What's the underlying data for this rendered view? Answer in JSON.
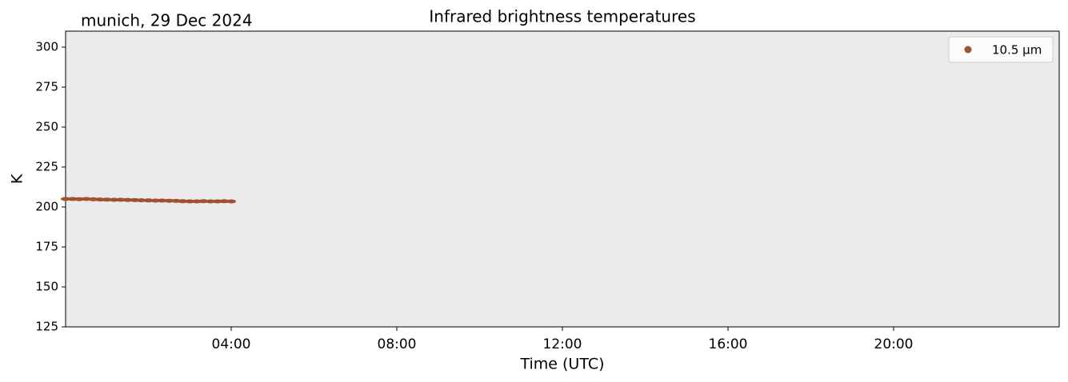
{
  "chart_data": {
    "type": "scatter",
    "title": "Infrared brightness temperatures",
    "subtitle": "munich, 29 Dec 2024",
    "xlabel": "Time (UTC)",
    "ylabel": "K",
    "xlim": [
      0,
      24
    ],
    "xticks": [
      {
        "value": 4,
        "label": "04:00"
      },
      {
        "value": 8,
        "label": "08:00"
      },
      {
        "value": 12,
        "label": "12:00"
      },
      {
        "value": 16,
        "label": "16:00"
      },
      {
        "value": 20,
        "label": "20:00"
      }
    ],
    "ylim": [
      125,
      310
    ],
    "yticks": [
      125,
      150,
      175,
      200,
      225,
      250,
      275,
      300
    ],
    "legend": "upper right",
    "series": [
      {
        "name": "10.5 µm",
        "color": "#a0522d",
        "x": [
          0,
          0.17,
          0.33,
          0.5,
          0.67,
          0.83,
          1,
          1.17,
          1.33,
          1.5,
          1.67,
          1.83,
          2,
          2.17,
          2.33,
          2.5,
          2.67,
          2.83,
          3,
          3.17,
          3.33,
          3.5,
          3.67,
          3.83,
          4
        ],
        "values": [
          205,
          205,
          204.9,
          205,
          204.8,
          204.7,
          204.6,
          204.5,
          204.5,
          204.4,
          204.3,
          204.2,
          204.1,
          204,
          204,
          203.9,
          203.8,
          203.6,
          203.5,
          203.5,
          203.6,
          203.5,
          203.5,
          203.6,
          203.5
        ]
      }
    ]
  }
}
